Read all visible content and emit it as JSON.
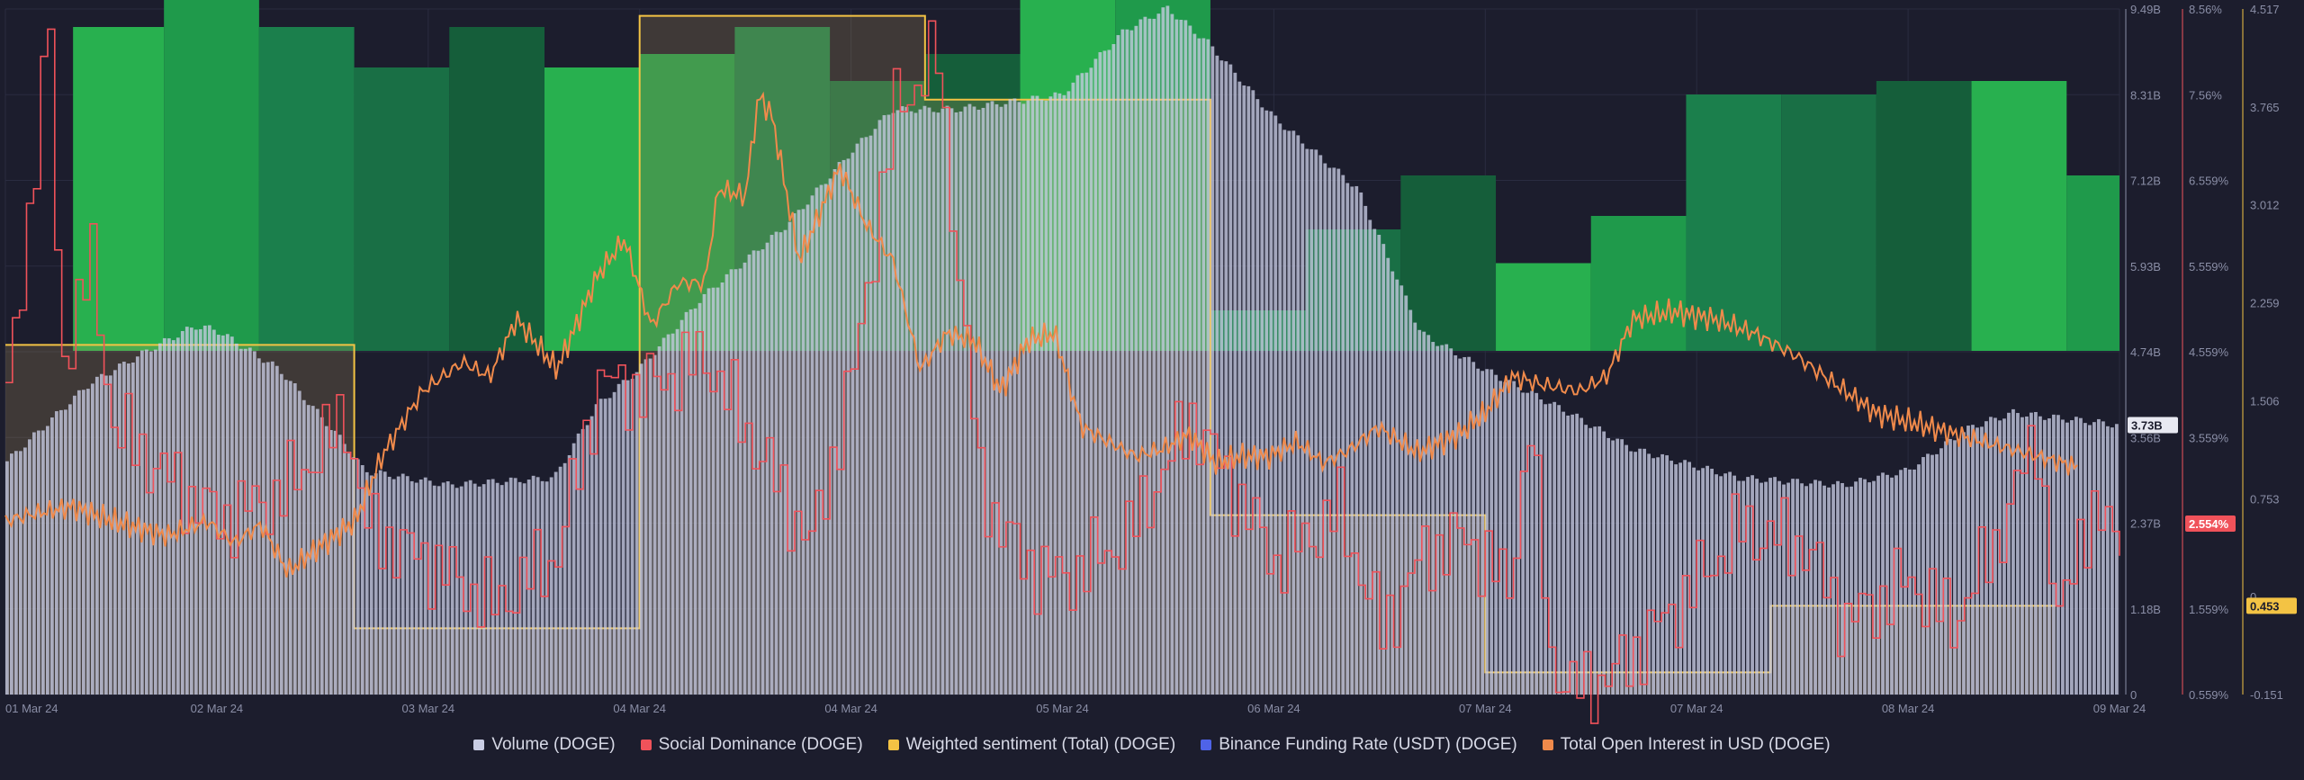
{
  "chart_data": {
    "type": "bar",
    "x_ticks": [
      "01 Mar 24",
      "02 Mar 24",
      "03 Mar 24",
      "04 Mar 24",
      "04 Mar 24",
      "05 Mar 24",
      "06 Mar 24",
      "07 Mar 24",
      "07 Mar 24",
      "08 Mar 24",
      "09 Mar 24"
    ],
    "axes": {
      "volume": {
        "ticks": [
          "9.49B",
          "8.31B",
          "7.12B",
          "5.93B",
          "4.74B",
          "3.56B",
          "2.37B",
          "1.18B",
          "0"
        ],
        "ylim": [
          0,
          9.49
        ],
        "unit": "B"
      },
      "social_dominance": {
        "ticks": [
          "8.56%",
          "7.56%",
          "6.559%",
          "5.559%",
          "4.559%",
          "3.559%",
          "2.554%",
          "1.559%",
          "0.559%"
        ],
        "ylim": [
          0.559,
          8.56
        ]
      },
      "sentiment": {
        "ticks": [
          "4.517",
          "3.765",
          "3.012",
          "2.259",
          "1.506",
          "0.753",
          "0",
          "-0.151"
        ],
        "ylim": [
          -0.151,
          4.517
        ]
      },
      "current_values": {
        "volume": "3.73B",
        "social_dominance": "2.554%",
        "sentiment": "0.453"
      }
    },
    "series": [
      {
        "name": "Volume (DOGE)",
        "color": "#c9cde4",
        "anchors": [
          [
            0,
            3.2
          ],
          [
            0.04,
            4.3
          ],
          [
            0.07,
            4.8
          ],
          [
            0.09,
            5.1
          ],
          [
            0.1,
            5.05
          ],
          [
            0.13,
            4.5
          ],
          [
            0.16,
            3.5
          ],
          [
            0.17,
            3.1
          ],
          [
            0.21,
            2.9
          ],
          [
            0.26,
            3.0
          ],
          [
            0.28,
            4.0
          ],
          [
            0.3,
            4.5
          ],
          [
            0.33,
            5.5
          ],
          [
            0.37,
            6.5
          ],
          [
            0.4,
            7.5
          ],
          [
            0.42,
            8.1
          ],
          [
            0.45,
            8.1
          ],
          [
            0.5,
            8.3
          ],
          [
            0.53,
            9.2
          ],
          [
            0.55,
            9.5
          ],
          [
            0.57,
            9.0
          ],
          [
            0.6,
            8.0
          ],
          [
            0.64,
            7.0
          ],
          [
            0.67,
            5.0
          ],
          [
            0.7,
            4.5
          ],
          [
            0.74,
            3.9
          ],
          [
            0.77,
            3.4
          ],
          [
            0.82,
            3.0
          ],
          [
            0.87,
            2.9
          ],
          [
            0.9,
            3.1
          ],
          [
            0.93,
            3.7
          ],
          [
            0.95,
            3.9
          ],
          [
            0.98,
            3.8
          ],
          [
            1,
            3.73
          ]
        ]
      },
      {
        "name": "Social Dominance (DOGE)",
        "color": "#f0525a",
        "anchors": [
          [
            0,
            4.0
          ],
          [
            0.02,
            8.3
          ],
          [
            0.025,
            4.4
          ],
          [
            0.04,
            5.6
          ],
          [
            0.05,
            3.7
          ],
          [
            0.08,
            3.0
          ],
          [
            0.1,
            2.6
          ],
          [
            0.13,
            2.9
          ],
          [
            0.16,
            3.8
          ],
          [
            0.17,
            2.5
          ],
          [
            0.2,
            2.1
          ],
          [
            0.23,
            1.6
          ],
          [
            0.26,
            2.2
          ],
          [
            0.28,
            4.2
          ],
          [
            0.3,
            4.1
          ],
          [
            0.33,
            4.5
          ],
          [
            0.36,
            3.2
          ],
          [
            0.38,
            2.3
          ],
          [
            0.4,
            4.3
          ],
          [
            0.42,
            7.4
          ],
          [
            0.44,
            8.0
          ],
          [
            0.46,
            3.0
          ],
          [
            0.48,
            2.1
          ],
          [
            0.5,
            1.9
          ],
          [
            0.53,
            2.4
          ],
          [
            0.56,
            3.8
          ],
          [
            0.6,
            2.1
          ],
          [
            0.63,
            2.7
          ],
          [
            0.65,
            1.3
          ],
          [
            0.67,
            2.2
          ],
          [
            0.69,
            2.4
          ],
          [
            0.71,
            1.8
          ],
          [
            0.72,
            3.7
          ],
          [
            0.73,
            1.0
          ],
          [
            0.74,
            0.6
          ],
          [
            0.76,
            0.8
          ],
          [
            0.79,
            1.6
          ],
          [
            0.82,
            2.5
          ],
          [
            0.85,
            2.3
          ],
          [
            0.87,
            1.4
          ],
          [
            0.9,
            1.9
          ],
          [
            0.92,
            1.4
          ],
          [
            0.94,
            2.3
          ],
          [
            0.96,
            3.6
          ],
          [
            0.97,
            1.3
          ],
          [
            0.98,
            2.5
          ],
          [
            1,
            2.554
          ]
        ]
      },
      {
        "name": "Weighted sentiment (Total) (DOGE)",
        "color": "#f3c344",
        "steps": [
          [
            0,
            2.23
          ],
          [
            0.165,
            0.3
          ],
          [
            0.3,
            4.47
          ],
          [
            0.435,
            3.9
          ],
          [
            0.57,
            1.07
          ],
          [
            0.7,
            0.0
          ],
          [
            0.835,
            0.453
          ],
          [
            0.97,
            0.453
          ]
        ]
      },
      {
        "name": "Binance Funding Rate (USDT) (DOGE)",
        "color": "#4f63e8",
        "blocks": [
          [
            0.032,
            0.075,
            2.4
          ],
          [
            0.075,
            0.12,
            3.0
          ],
          [
            0.12,
            0.165,
            2.4
          ],
          [
            0.165,
            0.21,
            2.1
          ],
          [
            0.21,
            0.255,
            2.4
          ],
          [
            0.255,
            0.3,
            2.1
          ],
          [
            0.3,
            0.345,
            2.2
          ],
          [
            0.345,
            0.39,
            2.4
          ],
          [
            0.39,
            0.435,
            2.0
          ],
          [
            0.435,
            0.48,
            2.2
          ],
          [
            0.48,
            0.525,
            3.6
          ],
          [
            0.525,
            0.57,
            2.7
          ],
          [
            0.57,
            0.615,
            0.3
          ],
          [
            0.615,
            0.66,
            0.9
          ],
          [
            0.66,
            0.705,
            1.3
          ],
          [
            0.705,
            0.75,
            0.65
          ],
          [
            0.75,
            0.795,
            1.0
          ],
          [
            0.795,
            0.84,
            1.9
          ],
          [
            0.84,
            0.885,
            1.9
          ],
          [
            0.885,
            0.93,
            2.0
          ],
          [
            0.93,
            0.975,
            2.0
          ],
          [
            0.975,
            1.0,
            1.3
          ]
        ]
      },
      {
        "name": "Total Open Interest in USD (DOGE)",
        "color": "#f08a4b",
        "anchors": [
          [
            0,
            2.4
          ],
          [
            0.02,
            2.5
          ],
          [
            0.05,
            2.6
          ],
          [
            0.08,
            2.4
          ],
          [
            0.12,
            2.2
          ],
          [
            0.15,
            2.4
          ],
          [
            0.17,
            2.1
          ],
          [
            0.19,
            2.35
          ],
          [
            0.21,
            1.7
          ],
          [
            0.23,
            2.0
          ],
          [
            0.26,
            2.4
          ],
          [
            0.28,
            3.3
          ],
          [
            0.31,
            4.2
          ],
          [
            0.34,
            4.6
          ],
          [
            0.36,
            4.4
          ],
          [
            0.38,
            5.2
          ],
          [
            0.41,
            4.5
          ],
          [
            0.44,
            5.8
          ],
          [
            0.46,
            6.3
          ],
          [
            0.48,
            5.1
          ],
          [
            0.5,
            5.7
          ],
          [
            0.52,
            5.7
          ],
          [
            0.53,
            7.0
          ],
          [
            0.55,
            6.9
          ],
          [
            0.56,
            8.3
          ],
          [
            0.57,
            8.0
          ],
          [
            0.59,
            6.0
          ],
          [
            0.62,
            7.3
          ],
          [
            0.64,
            6.5
          ],
          [
            0.66,
            6.0
          ],
          [
            0.68,
            4.5
          ],
          [
            0.7,
            5.0
          ],
          [
            0.72,
            4.9
          ],
          [
            0.74,
            4.2
          ],
          [
            0.76,
            4.9
          ],
          [
            0.78,
            5.0
          ],
          [
            0.8,
            3.7
          ],
          [
            0.82,
            3.5
          ],
          [
            0.84,
            3.3
          ],
          [
            0.86,
            3.4
          ],
          [
            0.88,
            3.6
          ],
          [
            0.9,
            3.2
          ],
          [
            0.92,
            3.3
          ],
          [
            0.94,
            3.3
          ],
          [
            0.96,
            3.5
          ],
          [
            0.98,
            3.2
          ],
          [
            1,
            3.4
          ],
          [
            1.02,
            3.7
          ],
          [
            1.05,
            3.35
          ],
          [
            1.08,
            3.6
          ],
          [
            1.1,
            3.9
          ],
          [
            1.12,
            4.4
          ],
          [
            1.14,
            4.3
          ],
          [
            1.17,
            4.2
          ],
          [
            1.19,
            4.4
          ],
          [
            1.21,
            5.2
          ],
          [
            1.24,
            5.3
          ],
          [
            1.27,
            5.2
          ],
          [
            1.3,
            5.0
          ],
          [
            1.33,
            4.7
          ],
          [
            1.36,
            4.3
          ],
          [
            1.39,
            3.9
          ],
          [
            1.42,
            3.75
          ],
          [
            1.45,
            3.6
          ],
          [
            1.48,
            3.45
          ],
          [
            1.51,
            3.3
          ],
          [
            1.54,
            3.15
          ]
        ]
      }
    ],
    "legend": [
      "Volume (DOGE)",
      "Social Dominance (DOGE)",
      "Weighted sentiment (Total) (DOGE)",
      "Binance Funding Rate (USDT) (DOGE)",
      "Total Open Interest in USD (DOGE)"
    ],
    "legend_position": "bottom-center",
    "grid": true
  }
}
